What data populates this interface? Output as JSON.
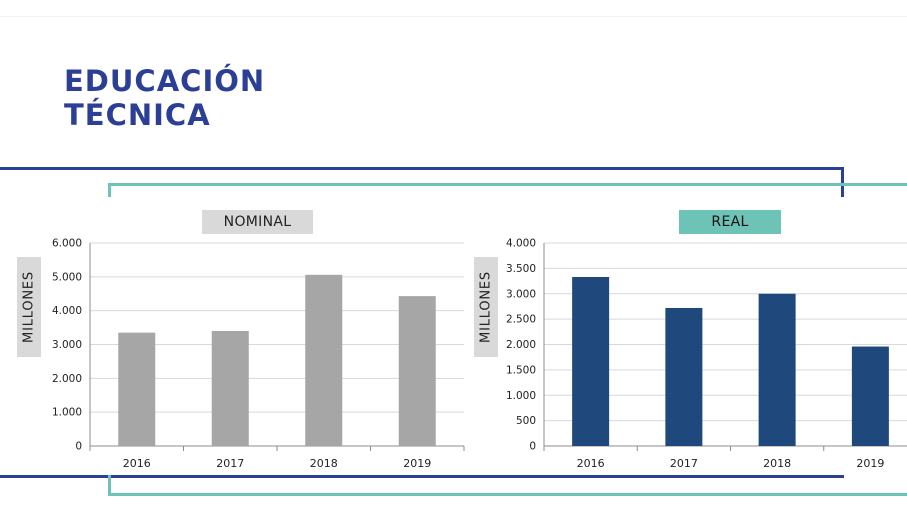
{
  "page": {
    "title_line1": "EDUCACIÓN",
    "title_line2": "TÉCNICA",
    "top_fragment": "· · · ·"
  },
  "colors": {
    "brand_blue": "#2b3f96",
    "teal": "#6cc3b6",
    "nominal_bar": "#a6a6a6",
    "real_bar": "#1f497d",
    "label_gray": "#d9d9d9"
  },
  "chart_data": [
    {
      "type": "bar",
      "title": "NOMINAL",
      "ylabel": "MILLONES",
      "xlabel": "",
      "categories": [
        "2016",
        "2017",
        "2018",
        "2019"
      ],
      "values": [
        3350,
        3400,
        5060,
        4430
      ],
      "ylim": [
        0,
        6000
      ],
      "yticks": [
        0,
        1000,
        2000,
        3000,
        4000,
        5000,
        6000
      ],
      "ytick_labels": [
        "0",
        "1.000",
        "2.000",
        "3.000",
        "4.000",
        "5.000",
        "6.000"
      ],
      "grid": true,
      "legend": "none"
    },
    {
      "type": "bar",
      "title": "REAL",
      "ylabel": "MILLONES",
      "xlabel": "",
      "categories": [
        "2016",
        "2017",
        "2018",
        "2019"
      ],
      "values": [
        3330,
        2720,
        3000,
        1960
      ],
      "ylim": [
        0,
        4000
      ],
      "yticks": [
        0,
        500,
        1000,
        1500,
        2000,
        2500,
        3000,
        3500,
        4000
      ],
      "ytick_labels": [
        "0",
        "500",
        "1.000",
        "1.500",
        "2.000",
        "2.500",
        "3.000",
        "3.500",
        "4.000"
      ],
      "grid": true,
      "legend": "none"
    }
  ]
}
